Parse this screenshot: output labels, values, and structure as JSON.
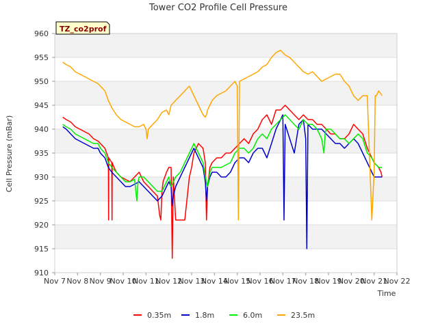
{
  "chart_data": {
    "type": "line",
    "title": "Tower CO2 Profile Cell Pressure",
    "xlabel": "Time",
    "ylabel": "Cell Pressure (mBar)",
    "tag": "TZ_co2prof",
    "ylim": [
      910,
      960
    ],
    "xlim": [
      7,
      22
    ],
    "x_ticks": [
      "Nov 7",
      "Nov 8",
      "Nov 9",
      "Nov 10",
      "Nov 11",
      "Nov 12",
      "Nov 13",
      "Nov 14",
      "Nov 15",
      "Nov 16",
      "Nov 17",
      "Nov 18",
      "Nov 19",
      "Nov 20",
      "Nov 21",
      "Nov 22"
    ],
    "y_ticks": [
      "910",
      "915",
      "920",
      "925",
      "930",
      "935",
      "940",
      "945",
      "950",
      "955",
      "960"
    ],
    "grid": true,
    "legend_position": "bottom",
    "series": [
      {
        "name": "0.35m",
        "color": "#ff0000",
        "x": [
          7.35,
          7.5,
          7.7,
          7.9,
          8.1,
          8.3,
          8.5,
          8.7,
          8.9,
          9.0,
          9.2,
          9.35,
          9.36,
          9.37,
          9.5,
          9.51,
          9.52,
          9.6,
          9.7,
          9.9,
          10.1,
          10.3,
          10.5,
          10.7,
          10.9,
          11.1,
          11.3,
          11.5,
          11.6,
          11.65,
          11.7,
          11.75,
          11.9,
          12.0,
          12.1,
          12.15,
          12.2,
          12.3,
          12.5,
          12.7,
          12.9,
          13.0,
          13.1,
          13.3,
          13.5,
          13.6,
          13.65,
          13.7,
          13.8,
          13.9,
          14.1,
          14.3,
          14.5,
          14.7,
          14.9,
          15.1,
          15.3,
          15.5,
          15.7,
          15.9,
          16.1,
          16.3,
          16.5,
          16.7,
          16.9,
          17.1,
          17.3,
          17.5,
          17.7,
          17.9,
          18.1,
          18.3,
          18.5,
          18.7,
          18.9,
          19.1,
          19.3,
          19.5,
          19.7,
          19.9,
          20.1,
          20.3,
          20.5,
          20.7,
          20.9,
          21.0,
          21.2,
          21.3,
          21.35
        ],
        "y": [
          942.5,
          942,
          941.5,
          940.5,
          940,
          939.5,
          939,
          938,
          937.5,
          937,
          936,
          934,
          921,
          934,
          933,
          921,
          933,
          932,
          931,
          930,
          929.5,
          929,
          930,
          931,
          929,
          928,
          927,
          926,
          922,
          921,
          927,
          929,
          931,
          932,
          932,
          913,
          930,
          921,
          921,
          921,
          930,
          932,
          935,
          937,
          936,
          933,
          921,
          928,
          932,
          933,
          934,
          934,
          935,
          935,
          936,
          937,
          938,
          937,
          939,
          940,
          942,
          943,
          941,
          944,
          944,
          945,
          944,
          943,
          942,
          943,
          942,
          942,
          941,
          941,
          940,
          939,
          939,
          938,
          938,
          939,
          941,
          940,
          939,
          936,
          934,
          933,
          932,
          931,
          930
        ]
      },
      {
        "name": "1.8m",
        "color": "#0000cc",
        "x": [
          7.35,
          7.5,
          7.7,
          7.9,
          8.1,
          8.3,
          8.5,
          8.7,
          8.9,
          9.0,
          9.2,
          9.35,
          9.5,
          9.7,
          9.9,
          10.1,
          10.3,
          10.5,
          10.7,
          10.9,
          11.1,
          11.3,
          11.5,
          11.7,
          11.9,
          12.0,
          12.1,
          12.15,
          12.2,
          12.3,
          12.5,
          12.7,
          12.9,
          13.0,
          13.1,
          13.3,
          13.5,
          13.6,
          13.65,
          13.7,
          13.8,
          13.9,
          14.1,
          14.3,
          14.5,
          14.7,
          14.9,
          15.1,
          15.3,
          15.5,
          15.7,
          15.9,
          16.1,
          16.3,
          16.5,
          16.7,
          16.9,
          17.0,
          17.05,
          17.1,
          17.3,
          17.5,
          17.7,
          17.9,
          18.0,
          18.05,
          18.1,
          18.3,
          18.5,
          18.7,
          18.9,
          19.1,
          19.3,
          19.5,
          19.7,
          19.9,
          20.1,
          20.3,
          20.5,
          20.7,
          20.9,
          21.0,
          21.2,
          21.35
        ],
        "y": [
          940.5,
          940,
          939,
          938,
          937.5,
          937,
          936.5,
          936,
          936,
          935,
          934,
          932,
          931,
          930,
          929,
          928,
          928,
          928.5,
          929,
          928,
          927,
          926,
          925,
          926,
          928,
          929,
          928,
          924,
          926,
          928,
          930,
          932,
          934,
          935,
          936,
          934,
          932,
          929,
          925,
          928,
          930,
          931,
          931,
          930,
          930,
          931,
          933,
          934,
          934,
          933,
          935,
          936,
          936,
          934,
          937,
          940,
          942,
          943,
          921,
          941,
          938,
          935,
          941,
          942,
          938,
          915,
          941,
          940,
          940,
          940,
          939,
          938,
          937,
          937,
          936,
          937,
          938,
          937,
          935,
          933,
          931,
          930,
          930,
          930
        ]
      },
      {
        "name": "6.0m",
        "color": "#00ee00",
        "x": [
          7.35,
          7.5,
          7.7,
          7.9,
          8.1,
          8.3,
          8.5,
          8.7,
          8.9,
          9.0,
          9.2,
          9.35,
          9.5,
          9.7,
          9.9,
          10.1,
          10.3,
          10.5,
          10.6,
          10.65,
          10.7,
          10.9,
          11.1,
          11.3,
          11.5,
          11.7,
          11.9,
          12.0,
          12.1,
          12.2,
          12.3,
          12.5,
          12.7,
          12.9,
          13.0,
          13.1,
          13.3,
          13.5,
          13.6,
          13.7,
          13.8,
          13.9,
          14.1,
          14.3,
          14.5,
          14.7,
          14.9,
          15.1,
          15.3,
          15.5,
          15.7,
          15.9,
          16.1,
          16.3,
          16.5,
          16.7,
          16.9,
          17.1,
          17.3,
          17.5,
          17.7,
          17.9,
          18.1,
          18.3,
          18.5,
          18.7,
          18.8,
          18.85,
          18.9,
          19.1,
          19.3,
          19.5,
          19.7,
          19.9,
          20.1,
          20.3,
          20.5,
          20.7,
          20.9,
          21.0,
          21.2,
          21.35
        ],
        "y": [
          941,
          940.5,
          940,
          939,
          938.5,
          938,
          937.5,
          937,
          937,
          936,
          935,
          933,
          932,
          931,
          930,
          929,
          929,
          929.5,
          925,
          929,
          930,
          930,
          929,
          928,
          927,
          927,
          929,
          930,
          928,
          929,
          930,
          931,
          933,
          935,
          936,
          937,
          935,
          933,
          930,
          928,
          931,
          932,
          932,
          932,
          932.5,
          933,
          935,
          936,
          936,
          935,
          936,
          938,
          939,
          938,
          940,
          941,
          942,
          943,
          942,
          941,
          940,
          942,
          941,
          941,
          940,
          938,
          935,
          939,
          940,
          940,
          939,
          938,
          938,
          937,
          938,
          939,
          938,
          935,
          934,
          933,
          932,
          932
        ]
      },
      {
        "name": "23.5m",
        "color": "#ffa500",
        "x": [
          7.35,
          7.5,
          7.7,
          7.9,
          8.1,
          8.3,
          8.5,
          8.7,
          8.9,
          9.0,
          9.2,
          9.35,
          9.5,
          9.7,
          9.9,
          10.1,
          10.3,
          10.5,
          10.7,
          10.9,
          11.0,
          11.05,
          11.1,
          11.3,
          11.5,
          11.7,
          11.9,
          12.0,
          12.1,
          12.3,
          12.5,
          12.7,
          12.9,
          13.1,
          13.3,
          13.5,
          13.6,
          13.65,
          13.7,
          13.9,
          14.1,
          14.3,
          14.5,
          14.7,
          14.9,
          15.0,
          15.05,
          15.1,
          15.3,
          15.5,
          15.7,
          15.9,
          16.1,
          16.3,
          16.5,
          16.7,
          16.9,
          17.1,
          17.3,
          17.5,
          17.7,
          17.9,
          18.1,
          18.3,
          18.5,
          18.7,
          18.9,
          19.1,
          19.3,
          19.5,
          19.7,
          19.9,
          20.1,
          20.3,
          20.5,
          20.7,
          20.9,
          21.0,
          21.05,
          21.1,
          21.2,
          21.35
        ],
        "y": [
          954,
          953.5,
          953,
          952,
          951.5,
          951,
          950.5,
          950,
          949.5,
          949,
          948,
          946,
          944.5,
          943,
          942,
          941.5,
          941,
          940.5,
          940.5,
          941,
          940,
          938,
          940,
          941,
          942,
          943.5,
          944,
          943,
          945,
          946,
          947,
          948,
          949,
          947,
          945,
          943,
          942.5,
          943,
          944,
          946,
          947,
          947.5,
          948,
          949,
          950,
          949,
          921,
          950,
          950.5,
          951,
          951.5,
          952,
          953,
          953.5,
          955,
          956,
          956.5,
          955.5,
          955,
          954,
          953,
          952,
          951.5,
          952,
          951,
          950,
          950.5,
          951,
          951.5,
          951.5,
          950,
          949,
          947,
          946,
          947,
          947,
          921,
          931,
          947,
          947,
          948,
          947
        ]
      }
    ]
  }
}
